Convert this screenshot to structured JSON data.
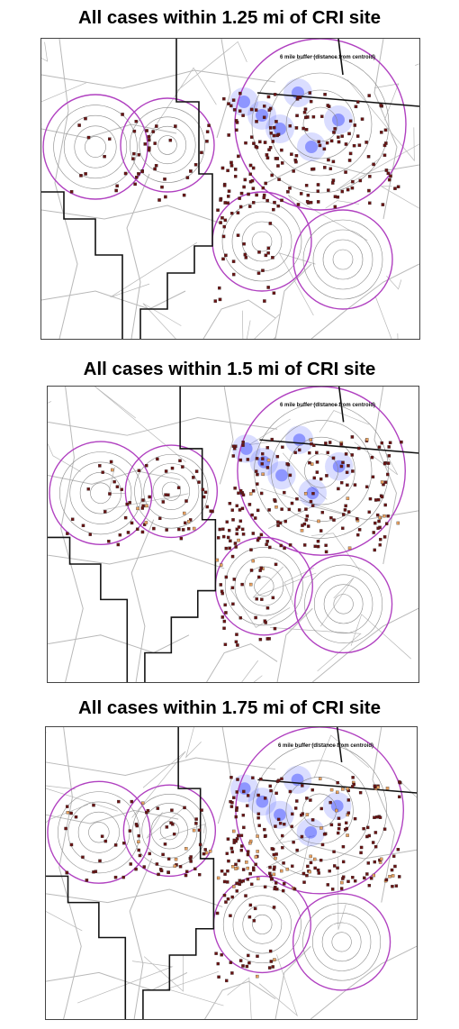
{
  "maps": [
    {
      "title": "All cases within 1.25 mi of CRI site",
      "buffer_label": "6 mile buffer (distance from centroid)"
    },
    {
      "title": "All cases within 1.5 mi of CRI site",
      "buffer_label": "6 mile buffer (distance from centroid)"
    },
    {
      "title": "All cases within 1.75 mi of CRI site",
      "buffer_label": "6 mile buffer (distance from centroid)"
    }
  ],
  "colors": {
    "buffer_ring": "#b040c0",
    "inner_ring": "#888888",
    "boundary": "#111111",
    "road": "#b8b8b8",
    "case_marker": "#6b1414",
    "case_marker_alt": "#e8a060",
    "hotspot": "#3040ff"
  }
}
